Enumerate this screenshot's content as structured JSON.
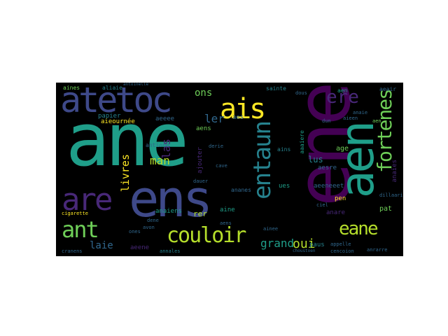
{
  "palette": {
    "yellow": "#fde725",
    "lime": "#b5de2b",
    "green": "#6ece58",
    "teal": "#1f9e89",
    "teal2": "#26828e",
    "blue": "#31688e",
    "indigo": "#3e4989",
    "purple": "#482878",
    "dark": "#440154"
  },
  "words": [
    {
      "text": "ane",
      "color": "#1f9e89"
    },
    {
      "text": "ene",
      "color": "#440154"
    },
    {
      "text": "aen",
      "color": "#1f9e89"
    },
    {
      "text": "ens",
      "color": "#3e4989"
    },
    {
      "text": "are",
      "color": "#482878"
    },
    {
      "text": "atetoc",
      "color": "#3e4989"
    },
    {
      "text": "ais",
      "color": "#fde725"
    },
    {
      "text": "couloir",
      "color": "#b5de2b"
    },
    {
      "text": "ant",
      "color": "#6ece58"
    },
    {
      "text": "entaun",
      "color": "#26828e"
    },
    {
      "text": "fortenes",
      "color": "#6ece58"
    },
    {
      "text": "eane",
      "color": "#b5de2b"
    },
    {
      "text": "ere",
      "color": "#482878"
    },
    {
      "text": "grand",
      "color": "#1f9e89"
    },
    {
      "text": "oui",
      "color": "#b5de2b"
    },
    {
      "text": "laie",
      "color": "#31688e"
    },
    {
      "text": "livres",
      "color": "#fde725"
    },
    {
      "text": "man",
      "color": "#b5de2b"
    },
    {
      "text": "las",
      "color": "#482878"
    },
    {
      "text": "ler",
      "color": "#31688e"
    },
    {
      "text": "ons",
      "color": "#6ece58"
    },
    {
      "text": "sainte",
      "color": "#26828e"
    },
    {
      "text": "aines",
      "color": "#6ece58"
    },
    {
      "text": "aliaie",
      "color": "#26828e"
    },
    {
      "text": "papier",
      "color": "#26828e"
    },
    {
      "text": "aieournée",
      "color": "#fde725"
    },
    {
      "text": "aeeee",
      "color": "#31688e"
    },
    {
      "text": "aens",
      "color": "#6ece58"
    },
    {
      "text": "aes",
      "color": "#31688e"
    },
    {
      "text": "antione",
      "color": "#31688e"
    },
    {
      "text": "ajouter",
      "color": "#482878"
    },
    {
      "text": "lus",
      "color": "#26828e"
    },
    {
      "text": "aesre",
      "color": "#31688e"
    },
    {
      "text": "aaaiere",
      "color": "#1f9e89"
    },
    {
      "text": "ains",
      "color": "#26828e"
    },
    {
      "text": "ues",
      "color": "#1f9e89"
    },
    {
      "text": "aeeneeet",
      "color": "#31688e"
    },
    {
      "text": "age",
      "color": "#6ece58"
    },
    {
      "text": "anaies",
      "color": "#482878"
    },
    {
      "text": "pen",
      "color": "#fde725"
    },
    {
      "text": "anare",
      "color": "#482878"
    },
    {
      "text": "aen",
      "color": "#1f9e89"
    },
    {
      "text": "pat",
      "color": "#6ece58"
    },
    {
      "text": "rer",
      "color": "#b5de2b"
    },
    {
      "text": "aine",
      "color": "#1f9e89"
    },
    {
      "text": "ananes",
      "color": "#31688e"
    },
    {
      "text": "anaiens",
      "color": "#1f9e89"
    },
    {
      "text": "aeene",
      "color": "#482878"
    },
    {
      "text": "paus",
      "color": "#26828e"
    },
    {
      "text": "annales",
      "color": "#26828e"
    },
    {
      "text": "dauer",
      "color": "#31688e"
    },
    {
      "text": "cigarette",
      "color": "#fde725"
    },
    {
      "text": "ones",
      "color": "#31688e"
    },
    {
      "text": "cranens",
      "color": "#31688e"
    },
    {
      "text": "dillaarian",
      "color": "#31688e"
    },
    {
      "text": "cencoion",
      "color": "#31688e"
    },
    {
      "text": "anrarre",
      "color": "#31688e"
    },
    {
      "text": "dene",
      "color": "#31688e"
    },
    {
      "text": "avon",
      "color": "#31688e"
    },
    {
      "text": "aens",
      "color": "#31688e"
    },
    {
      "text": "aeair",
      "color": "#31688e"
    },
    {
      "text": "aen",
      "color": "#6ece58"
    },
    {
      "text": "aieen",
      "color": "#31688e"
    },
    {
      "text": "dous",
      "color": "#31688e"
    },
    {
      "text": "antoinelle",
      "color": "#31688e"
    },
    {
      "text": "choustoen",
      "color": "#31688e"
    },
    {
      "text": "cave",
      "color": "#31688e"
    },
    {
      "text": "derie",
      "color": "#31688e"
    },
    {
      "text": "ainee",
      "color": "#31688e"
    },
    {
      "text": "appelle",
      "color": "#31688e"
    },
    {
      "text": "anaie",
      "color": "#31688e"
    },
    {
      "text": "ciel",
      "color": "#31688e"
    },
    {
      "text": "dun",
      "color": "#31688e"
    }
  ]
}
